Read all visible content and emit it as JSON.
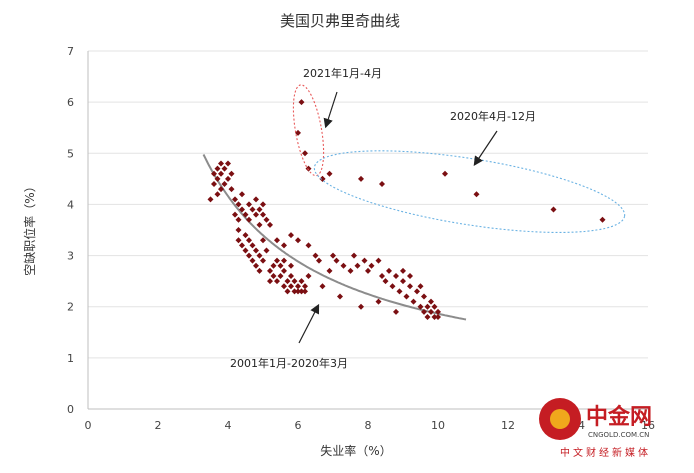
{
  "chart_data": {
    "type": "scatter",
    "title": "美国贝弗里奇曲线",
    "xlabel": "失业率（%）",
    "ylabel": "空缺职位率（%）",
    "xlim": [
      0,
      16
    ],
    "ylim": [
      0,
      7
    ],
    "xticks": [
      0,
      2,
      4,
      6,
      8,
      10,
      12,
      14,
      16
    ],
    "yticks": [
      0,
      1,
      2,
      3,
      4,
      5,
      6,
      7
    ],
    "grid": "horizontal",
    "series": [
      {
        "name": "2001年1月-2020年3月",
        "color": "#7b0f12",
        "points": [
          [
            3.5,
            4.1
          ],
          [
            3.6,
            4.4
          ],
          [
            3.6,
            4.6
          ],
          [
            3.7,
            4.5
          ],
          [
            3.7,
            4.7
          ],
          [
            3.8,
            4.6
          ],
          [
            3.8,
            4.8
          ],
          [
            3.9,
            4.4
          ],
          [
            3.9,
            4.7
          ],
          [
            4.0,
            4.5
          ],
          [
            4.0,
            4.8
          ],
          [
            4.1,
            4.6
          ],
          [
            4.1,
            4.3
          ],
          [
            3.8,
            4.3
          ],
          [
            3.7,
            4.2
          ],
          [
            4.2,
            4.1
          ],
          [
            4.3,
            4.0
          ],
          [
            4.4,
            3.9
          ],
          [
            4.5,
            3.8
          ],
          [
            4.6,
            4.0
          ],
          [
            4.7,
            3.9
          ],
          [
            4.8,
            3.8
          ],
          [
            4.9,
            3.9
          ],
          [
            5.0,
            3.8
          ],
          [
            5.1,
            3.7
          ],
          [
            4.2,
            3.8
          ],
          [
            4.3,
            3.7
          ],
          [
            4.6,
            3.7
          ],
          [
            4.9,
            3.6
          ],
          [
            4.8,
            4.1
          ],
          [
            5.0,
            4.0
          ],
          [
            5.2,
            3.6
          ],
          [
            4.4,
            4.2
          ],
          [
            4.3,
            3.5
          ],
          [
            4.3,
            3.3
          ],
          [
            4.4,
            3.2
          ],
          [
            4.5,
            3.4
          ],
          [
            4.5,
            3.1
          ],
          [
            4.6,
            3.3
          ],
          [
            4.6,
            3.0
          ],
          [
            4.7,
            3.2
          ],
          [
            4.7,
            2.9
          ],
          [
            4.8,
            3.1
          ],
          [
            4.8,
            2.8
          ],
          [
            4.9,
            3.0
          ],
          [
            4.9,
            2.7
          ],
          [
            5.0,
            2.9
          ],
          [
            5.0,
            3.3
          ],
          [
            5.1,
            3.1
          ],
          [
            5.2,
            2.7
          ],
          [
            5.3,
            2.8
          ],
          [
            5.3,
            2.6
          ],
          [
            5.4,
            2.5
          ],
          [
            5.5,
            2.6
          ],
          [
            5.5,
            2.8
          ],
          [
            5.6,
            2.4
          ],
          [
            5.6,
            2.7
          ],
          [
            5.7,
            2.5
          ],
          [
            5.7,
            2.3
          ],
          [
            5.8,
            2.6
          ],
          [
            5.8,
            2.4
          ],
          [
            5.9,
            2.3
          ],
          [
            5.9,
            2.5
          ],
          [
            6.0,
            2.4
          ],
          [
            6.0,
            2.3
          ],
          [
            6.1,
            2.5
          ],
          [
            6.1,
            2.3
          ],
          [
            6.2,
            2.4
          ],
          [
            6.2,
            2.3
          ],
          [
            5.4,
            2.9
          ],
          [
            5.6,
            2.9
          ],
          [
            5.8,
            2.8
          ],
          [
            5.2,
            2.5
          ],
          [
            5.4,
            3.3
          ],
          [
            5.6,
            3.2
          ],
          [
            5.8,
            3.4
          ],
          [
            6.0,
            3.3
          ],
          [
            6.3,
            3.2
          ],
          [
            6.5,
            3.0
          ],
          [
            6.6,
            2.9
          ],
          [
            6.9,
            2.7
          ],
          [
            6.3,
            2.6
          ],
          [
            6.7,
            2.4
          ],
          [
            7.2,
            2.2
          ],
          [
            7.8,
            2.0
          ],
          [
            8.3,
            2.1
          ],
          [
            8.8,
            1.9
          ],
          [
            7.0,
            3.0
          ],
          [
            7.1,
            2.9
          ],
          [
            7.3,
            2.8
          ],
          [
            7.5,
            2.7
          ],
          [
            7.6,
            3.0
          ],
          [
            7.7,
            2.8
          ],
          [
            7.9,
            2.9
          ],
          [
            8.0,
            2.7
          ],
          [
            8.1,
            2.8
          ],
          [
            8.3,
            2.9
          ],
          [
            8.4,
            2.6
          ],
          [
            8.5,
            2.5
          ],
          [
            8.6,
            2.7
          ],
          [
            8.7,
            2.4
          ],
          [
            8.8,
            2.6
          ],
          [
            8.9,
            2.3
          ],
          [
            9.0,
            2.5
          ],
          [
            9.1,
            2.2
          ],
          [
            9.2,
            2.4
          ],
          [
            9.3,
            2.1
          ],
          [
            9.4,
            2.3
          ],
          [
            9.5,
            2.0
          ],
          [
            9.5,
            2.4
          ],
          [
            9.6,
            2.2
          ],
          [
            9.7,
            2.0
          ],
          [
            9.7,
            1.8
          ],
          [
            9.8,
            2.1
          ],
          [
            9.8,
            1.9
          ],
          [
            9.9,
            2.0
          ],
          [
            9.9,
            1.8
          ],
          [
            10.0,
            1.9
          ],
          [
            10.0,
            1.8
          ],
          [
            9.6,
            1.9
          ],
          [
            9.0,
            2.7
          ],
          [
            9.2,
            2.6
          ]
        ]
      },
      {
        "name": "2020年4月-12月",
        "color": "#7b0f12",
        "points": [
          [
            14.7,
            3.7
          ],
          [
            13.3,
            3.9
          ],
          [
            11.1,
            4.2
          ],
          [
            10.2,
            4.6
          ],
          [
            8.4,
            4.4
          ],
          [
            7.8,
            4.5
          ],
          [
            6.9,
            4.6
          ],
          [
            6.7,
            4.5
          ],
          [
            6.7,
            4.5
          ]
        ]
      },
      {
        "name": "2021年1月-4月",
        "color": "#7b0f12",
        "points": [
          [
            6.3,
            4.7
          ],
          [
            6.2,
            5.0
          ],
          [
            6.0,
            5.4
          ],
          [
            6.1,
            6.0
          ]
        ]
      }
    ]
  },
  "watermark": {
    "brand": "中金网",
    "site": "CNGOLD.COM.CN",
    "tagline": "中文财经新媒体"
  }
}
